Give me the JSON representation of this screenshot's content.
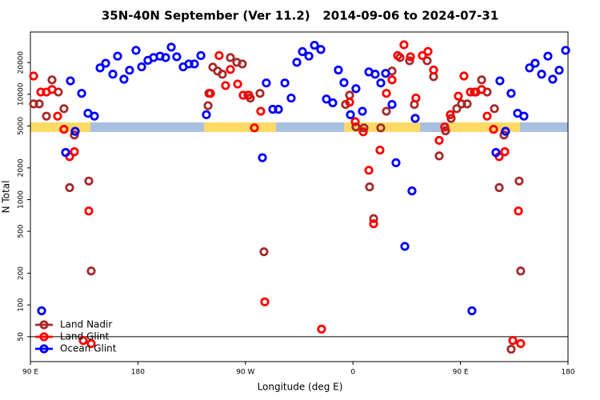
{
  "chart_data": {
    "type": "scatter",
    "title": "35N-40N September (Ver 11.2)   2014-09-06 to 2024-07-31",
    "x_label": "Longitude (deg E)",
    "y_label": "N Total",
    "log_y": true,
    "xlim": [
      90,
      540
    ],
    "ylim": [
      29,
      39000
    ],
    "xticks": [
      {
        "value": 90,
        "label": "90 E"
      },
      180,
      {
        "value": 270,
        "label": "90 W"
      },
      {
        "value": 360,
        "label": "0"
      },
      {
        "value": 450,
        "label": "90 E"
      },
      {
        "value": 540,
        "label": "180"
      }
    ],
    "yticks": [
      50,
      100,
      200,
      500,
      1000,
      2000,
      5000,
      10000,
      20000
    ],
    "hline": 50,
    "legend": "bottom-left",
    "series": [
      {
        "name": "Land Nadir",
        "color": "#a52a2a",
        "x": [
          92.7,
          97.4,
          103.4,
          108.1,
          113.4,
          118.1,
          122.8,
          126.8,
          138.9,
          140.9,
          238.7,
          239.4,
          242.7,
          246.7,
          250.7,
          257.4,
          262.8,
          267.4,
          272.1,
          274.1,
          282.2,
          285.5,
          353.8,
          357.2,
          362.5,
          369.2,
          373.9,
          377.3,
          383.3,
          388.0,
          392.7,
          399.4,
          407.4,
          411.4,
          422.1,
          427.5,
          432.2,
          437.5,
          442.2,
          446.9,
          450.9,
          455.6,
          461.6,
          467.7,
          472.3,
          478.4,
          482.4,
          486.4,
          492.4,
          499.1,
          500.4
        ],
        "values": [
          8100,
          8100,
          6200,
          13700,
          10500,
          7300,
          1300,
          4100,
          1500,
          210,
          7800,
          10200,
          18100,
          16600,
          15500,
          22300,
          20100,
          19400,
          9800,
          9200,
          10200,
          320,
          8000,
          9800,
          4900,
          4800,
          1320,
          660,
          4800,
          6900,
          16600,
          22300,
          20800,
          8000,
          20800,
          14700,
          2600,
          4500,
          5900,
          7300,
          8100,
          8100,
          10500,
          13700,
          10500,
          7300,
          1300,
          4100,
          38,
          1500,
          210
        ]
      },
      {
        "name": "Land Glint",
        "color": "#ff0000",
        "x": [
          92.7,
          98.7,
          103.4,
          108.1,
          112.8,
          118.1,
          122.8,
          126.8,
          134.2,
          140.9,
          138.9,
          240.7,
          248.0,
          253.4,
          257.4,
          263.5,
          268.1,
          272.8,
          277.5,
          282.8,
          286.2,
          333.7,
          357.2,
          361.9,
          368.6,
          373.3,
          377.3,
          382.6,
          388.0,
          392.7,
          397.4,
          402.7,
          408.1,
          412.7,
          418.1,
          422.8,
          427.5,
          432.2,
          436.8,
          441.5,
          448.2,
          452.9,
          458.3,
          462.9,
          467.7,
          472.3,
          477.7,
          482.4,
          487.1,
          493.8,
          500.4,
          498.5
        ],
        "values": [
          14900,
          10500,
          10500,
          11100,
          6200,
          4650,
          2560,
          2850,
          46,
          43,
          780,
          10200,
          23300,
          12100,
          17200,
          12500,
          9800,
          9800,
          4800,
          6900,
          107,
          59,
          8400,
          5500,
          4400,
          1900,
          590,
          2950,
          10200,
          13700,
          23300,
          29500,
          22700,
          9200,
          23300,
          25500,
          17000,
          3650,
          4900,
          6400,
          9600,
          14900,
          10500,
          10500,
          11100,
          6200,
          4650,
          2560,
          2850,
          46,
          43,
          780
        ]
      },
      {
        "name": "Ocean Glint",
        "color": "#0000ff",
        "x": [
          99.4,
          123.5,
          119.5,
          127.5,
          132.9,
          138.2,
          143.6,
          148.3,
          153.0,
          159.0,
          163.0,
          168.3,
          173.0,
          178.4,
          183.1,
          188.4,
          193.1,
          198.5,
          203.2,
          207.9,
          212.5,
          217.9,
          222.6,
          227.3,
          232.7,
          237.3,
          284.2,
          287.5,
          292.9,
          297.6,
          303.0,
          308.3,
          313.0,
          317.7,
          323.1,
          327.8,
          333.1,
          337.8,
          343.1,
          347.8,
          352.5,
          357.9,
          362.5,
          367.9,
          373.3,
          378.6,
          383.3,
          387.3,
          392.7,
          396.0,
          403.4,
          409.4,
          412.1,
          459.6,
          479.7,
          483.0,
          487.7,
          492.4,
          497.8,
          503.1,
          507.8,
          512.5,
          517.9,
          523.2,
          527.2,
          532.6,
          538.0
        ],
        "values": [
          88,
          13400,
          2800,
          4450,
          10200,
          6600,
          6200,
          17800,
          19700,
          15500,
          23000,
          13900,
          16900,
          26100,
          18200,
          21000,
          22300,
          23000,
          22300,
          28000,
          22700,
          18200,
          19400,
          19400,
          23300,
          6400,
          2500,
          12800,
          7200,
          7200,
          12800,
          9200,
          20100,
          25400,
          23000,
          29200,
          26600,
          9000,
          8300,
          17000,
          12900,
          6400,
          11300,
          6900,
          16300,
          15500,
          12800,
          15800,
          8000,
          2240,
          360,
          1210,
          5900,
          88,
          2800,
          13400,
          4450,
          10200,
          6600,
          6200,
          17800,
          19700,
          15500,
          23000,
          13900,
          16900,
          26100
        ]
      }
    ]
  }
}
